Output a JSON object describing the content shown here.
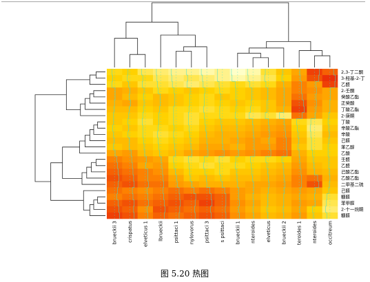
{
  "chart_data": {
    "type": "heatmap",
    "rows": [
      "2,3-丁二酮",
      "3-羟基-2-丁",
      "乙醛",
      "2-壬酮",
      "癸酸乙酯",
      "正癸酸",
      "丁酸乙酯",
      "2-庚酮",
      "丁酸",
      "辛酸乙酯",
      "辛酸",
      "己醛",
      "苯乙醇",
      "乙酸",
      "壬醛",
      "乙醛",
      "己酸乙酯",
      "乙酸乙酯",
      "二甲基二硫",
      "己醛",
      "糠醛",
      "苯甲醛",
      "2-十一烷酮",
      "糠醛"
    ],
    "columns": [
      "brueckii 3",
      "crispatus",
      "elveticus 1",
      "lbrueckii",
      "psittaci 1",
      "nylovorus",
      "psittaci 3",
      "s psittaci",
      "brueckii 1",
      "nteroides",
      "elveticus",
      "brueckii 2",
      "teroides 1",
      "nteroides",
      "occitreum"
    ],
    "values": [
      [
        0.3,
        0.35,
        0.2,
        0.15,
        0.1,
        0.1,
        0.05,
        0.1,
        0.0,
        0.05,
        0.25,
        0.4,
        0.55,
        0.9,
        0.8
      ],
      [
        0.35,
        0.3,
        0.3,
        0.2,
        0.15,
        0.2,
        0.15,
        0.1,
        0.05,
        0.1,
        0.2,
        0.35,
        0.6,
        0.85,
        0.95
      ],
      [
        0.3,
        0.4,
        0.25,
        0.25,
        0.2,
        0.15,
        0.2,
        0.25,
        0.3,
        0.25,
        0.3,
        0.5,
        0.7,
        0.6,
        0.9
      ],
      [
        0.55,
        0.5,
        0.4,
        0.3,
        0.35,
        0.4,
        0.35,
        0.3,
        0.35,
        0.4,
        0.45,
        0.55,
        0.7,
        0.65,
        0.55
      ],
      [
        0.55,
        0.45,
        0.35,
        0.45,
        0.4,
        0.35,
        0.3,
        0.4,
        0.35,
        0.4,
        0.45,
        0.55,
        0.75,
        0.6,
        0.55
      ],
      [
        0.5,
        0.55,
        0.4,
        0.45,
        0.4,
        0.35,
        0.3,
        0.35,
        0.4,
        0.35,
        0.4,
        0.55,
        0.85,
        0.65,
        0.5
      ],
      [
        0.45,
        0.45,
        0.35,
        0.4,
        0.3,
        0.3,
        0.25,
        0.3,
        0.35,
        0.3,
        0.4,
        0.5,
        0.9,
        0.6,
        0.5
      ],
      [
        0.4,
        0.4,
        0.3,
        0.35,
        0.3,
        0.25,
        0.3,
        0.3,
        0.3,
        0.2,
        0.25,
        0.15,
        0.75,
        0.55,
        0.4
      ],
      [
        0.4,
        0.35,
        0.25,
        0.35,
        0.3,
        0.25,
        0.35,
        0.4,
        0.4,
        0.45,
        0.5,
        0.55,
        0.3,
        0.2,
        0.35
      ],
      [
        0.35,
        0.4,
        0.3,
        0.3,
        0.35,
        0.3,
        0.4,
        0.45,
        0.45,
        0.5,
        0.55,
        0.6,
        0.35,
        0.15,
        0.4
      ],
      [
        0.4,
        0.35,
        0.3,
        0.25,
        0.3,
        0.35,
        0.45,
        0.5,
        0.5,
        0.55,
        0.6,
        0.65,
        0.4,
        0.2,
        0.45
      ],
      [
        0.45,
        0.45,
        0.35,
        0.3,
        0.35,
        0.4,
        0.5,
        0.5,
        0.55,
        0.6,
        0.55,
        0.7,
        0.45,
        0.25,
        0.4
      ],
      [
        0.4,
        0.45,
        0.4,
        0.35,
        0.4,
        0.45,
        0.55,
        0.55,
        0.5,
        0.6,
        0.6,
        0.7,
        0.4,
        0.25,
        0.35
      ],
      [
        0.55,
        0.6,
        0.45,
        0.4,
        0.45,
        0.55,
        0.6,
        0.65,
        0.6,
        0.65,
        0.7,
        0.75,
        0.5,
        0.35,
        0.35
      ],
      [
        0.7,
        0.65,
        0.6,
        0.55,
        0.3,
        0.25,
        0.3,
        0.25,
        0.35,
        0.3,
        0.3,
        0.35,
        0.55,
        0.4,
        0.4
      ],
      [
        0.75,
        0.7,
        0.55,
        0.6,
        0.35,
        0.3,
        0.25,
        0.3,
        0.3,
        0.35,
        0.4,
        0.45,
        0.6,
        0.45,
        0.4
      ],
      [
        0.8,
        0.75,
        0.7,
        0.65,
        0.45,
        0.35,
        0.35,
        0.3,
        0.4,
        0.4,
        0.45,
        0.5,
        0.65,
        0.5,
        0.45
      ],
      [
        0.85,
        0.8,
        0.7,
        0.7,
        0.55,
        0.4,
        0.45,
        0.4,
        0.45,
        0.45,
        0.5,
        0.55,
        0.7,
        0.75,
        0.5
      ],
      [
        0.8,
        0.85,
        0.75,
        0.75,
        0.6,
        0.55,
        0.5,
        0.5,
        0.5,
        0.55,
        0.55,
        0.6,
        0.7,
        0.85,
        0.45
      ],
      [
        0.75,
        0.7,
        0.65,
        0.7,
        0.75,
        0.7,
        0.75,
        0.7,
        0.6,
        0.55,
        0.5,
        0.55,
        0.6,
        0.55,
        0.4
      ],
      [
        0.7,
        0.75,
        0.7,
        0.75,
        0.8,
        0.85,
        0.85,
        0.8,
        0.6,
        0.5,
        0.45,
        0.5,
        0.55,
        0.5,
        0.25
      ],
      [
        0.8,
        0.85,
        0.75,
        0.8,
        0.85,
        0.8,
        0.9,
        0.8,
        0.65,
        0.55,
        0.45,
        0.5,
        0.6,
        0.55,
        0.2
      ],
      [
        0.85,
        0.8,
        0.65,
        0.85,
        0.8,
        0.75,
        0.8,
        0.75,
        0.6,
        0.5,
        0.4,
        0.45,
        0.55,
        0.35,
        0.15
      ],
      [
        0.9,
        0.85,
        0.7,
        0.8,
        0.75,
        0.8,
        0.85,
        0.8,
        0.65,
        0.55,
        0.45,
        0.5,
        0.6,
        0.4,
        0.25
      ]
    ],
    "colormap": [
      "#ffffc8",
      "#ffd500",
      "#ff8c00",
      "#e8200a"
    ]
  },
  "caption": "图 5.20 热图"
}
